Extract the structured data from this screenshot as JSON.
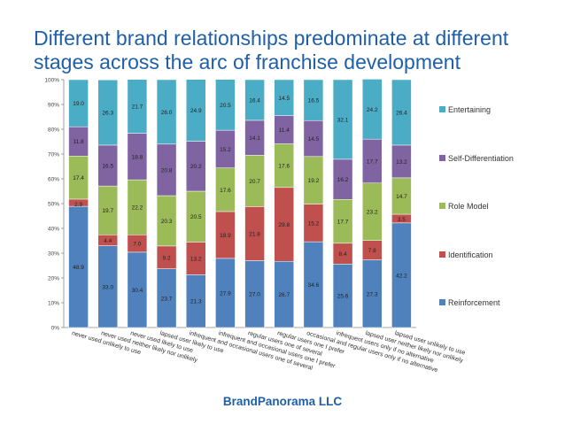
{
  "title": "Different brand relationships predominate at different stages across the arc of franchise development",
  "footer": "BrandPanorama LLC",
  "chart_data": {
    "type": "bar",
    "stacked": true,
    "percent": true,
    "categories": [
      "never used unlikely to use",
      "never used neither likely nor unlikely",
      "never used likely to use",
      "lapsed user likely to use",
      "infrequent and occasional users one of several",
      "infrequent and occasional users one I prefer",
      "regular users one of several",
      "regular users one I prefer",
      "occasional and regular users only if no alternative",
      "infrequent users only if no alternative",
      "lapsed user neither likely nor unlikely",
      "lapsed user unlikely to use"
    ],
    "series": [
      {
        "name": "Reinforcement",
        "color": "#4F81BD",
        "values": [
          48.9,
          33.0,
          30.4,
          23.7,
          21.3,
          27.9,
          27.0,
          26.7,
          34.6,
          25.6,
          27.3,
          42.2
        ]
      },
      {
        "name": "Identification",
        "color": "#C0504D",
        "values": [
          2.9,
          4.4,
          7.0,
          9.2,
          13.2,
          18.9,
          21.8,
          29.8,
          15.2,
          8.4,
          7.8,
          3.5
        ]
      },
      {
        "name": "Role Model",
        "color": "#9BBB59",
        "values": [
          17.4,
          19.7,
          22.2,
          20.3,
          20.5,
          17.6,
          20.7,
          17.6,
          19.2,
          17.7,
          23.2,
          14.7
        ]
      },
      {
        "name": "Self-Differentiation",
        "color": "#8064A2",
        "values": [
          11.8,
          16.5,
          18.8,
          20.8,
          20.2,
          15.2,
          14.1,
          11.4,
          14.5,
          16.2,
          17.7,
          13.2
        ]
      },
      {
        "name": "Entertaining",
        "color": "#4BACC6",
        "values": [
          19.0,
          26.3,
          21.7,
          26.0,
          24.9,
          20.5,
          16.4,
          14.5,
          16.5,
          32.1,
          24.2,
          26.4
        ]
      }
    ],
    "ylim": [
      0,
      100
    ],
    "yticks": [
      "0%",
      "10%",
      "20%",
      "30%",
      "40%",
      "50%",
      "60%",
      "70%",
      "80%",
      "90%",
      "100%"
    ],
    "grid": false,
    "legend": "right"
  }
}
